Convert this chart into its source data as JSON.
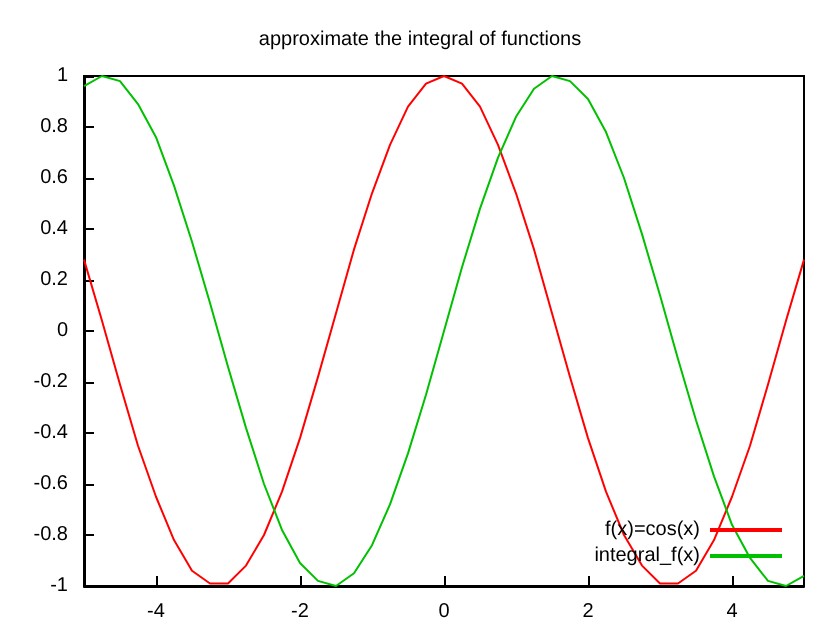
{
  "chart_data": {
    "type": "line",
    "title": "approximate the integral of functions",
    "x": [
      -5,
      -4.75,
      -4.5,
      -4.25,
      -4,
      -3.75,
      -3.5,
      -3.25,
      -3,
      -2.75,
      -2.5,
      -2.25,
      -2,
      -1.75,
      -1.5,
      -1.25,
      -1,
      -0.75,
      -0.5,
      -0.25,
      0,
      0.25,
      0.5,
      0.75,
      1,
      1.25,
      1.5,
      1.75,
      2,
      2.25,
      2.5,
      2.75,
      3,
      3.25,
      3.5,
      3.75,
      4,
      4.25,
      4.5,
      4.75,
      5
    ],
    "series": [
      {
        "name": "f(x)=cos(x)",
        "color": "#ff0000",
        "values": [
          0.28,
          0.04,
          -0.21,
          -0.45,
          -0.65,
          -0.82,
          -0.94,
          -0.99,
          -0.99,
          -0.92,
          -0.8,
          -0.63,
          -0.42,
          -0.18,
          0.07,
          0.32,
          0.54,
          0.73,
          0.88,
          0.97,
          1,
          0.97,
          0.88,
          0.73,
          0.54,
          0.32,
          0.07,
          -0.18,
          -0.42,
          -0.63,
          -0.8,
          -0.92,
          -0.99,
          -0.99,
          -0.94,
          -0.82,
          -0.65,
          -0.45,
          -0.21,
          0.04,
          0.28
        ]
      },
      {
        "name": "integral_f(x)",
        "color": "#00c000",
        "values": [
          0.96,
          1,
          0.98,
          0.89,
          0.76,
          0.57,
          0.35,
          0.11,
          -0.14,
          -0.38,
          -0.6,
          -0.78,
          -0.91,
          -0.98,
          -1,
          -0.95,
          -0.84,
          -0.68,
          -0.48,
          -0.25,
          0,
          0.25,
          0.48,
          0.68,
          0.84,
          0.95,
          1,
          0.98,
          0.91,
          0.78,
          0.6,
          0.38,
          0.14,
          -0.11,
          -0.35,
          -0.57,
          -0.76,
          -0.89,
          -0.98,
          -1,
          -0.96
        ]
      }
    ],
    "xlim": [
      -5,
      5
    ],
    "xticks": [
      -4,
      -2,
      0,
      2,
      4
    ],
    "ylim": [
      -1,
      1
    ],
    "yticks": [
      -1,
      -0.8,
      -0.6,
      -0.4,
      -0.2,
      0,
      0.2,
      0.4,
      0.6,
      0.8,
      1
    ],
    "grid": false,
    "legend": "bottom right",
    "marker": "none",
    "line_style": "solid"
  }
}
